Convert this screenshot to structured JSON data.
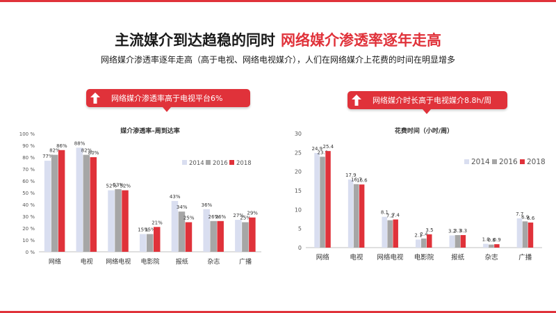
{
  "header": {
    "title_main": "主流媒介到达趋稳的同时",
    "title_highlight": "网络媒介渗透率逐年走高",
    "subtitle": "网络媒介渗透率逐年走高（高于电视、网络电视媒介），人们在网络媒介上花费的时间在明显增多"
  },
  "banners": {
    "left": "网络媒介渗透率高于电视平台6%",
    "right": "网络媒介时长高于电视媒介8.8h/周"
  },
  "colors": {
    "2014": "#d9def0",
    "2016": "#a6a6a6",
    "2018": "#e0323a",
    "accent": "#e0323a"
  },
  "chart_data": [
    {
      "type": "bar",
      "title": "媒介渗透率–周到达率",
      "categories": [
        "网络",
        "电视",
        "网络电视",
        "电影院",
        "报纸",
        "杂志",
        "广播"
      ],
      "series": [
        {
          "name": "2014",
          "values": [
            77,
            88,
            52,
            15,
            43,
            36,
            27
          ],
          "labels": [
            "77%",
            "88%",
            "52%",
            "15%",
            "43%",
            "36%",
            "27%"
          ]
        },
        {
          "name": "2016",
          "values": [
            82,
            82,
            53,
            15,
            34,
            26,
            25
          ],
          "labels": [
            "82%",
            "82%",
            "53%",
            "15%",
            "34%",
            "26%",
            "25%"
          ]
        },
        {
          "name": "2018",
          "values": [
            86,
            80,
            52,
            21,
            25,
            26,
            29
          ],
          "labels": [
            "86%",
            "80%",
            "52%",
            "21%",
            "25%",
            "26%",
            "29%"
          ]
        }
      ],
      "ylim": [
        0,
        100
      ],
      "yticks": [
        "0 %",
        "10 %",
        "20 %",
        "30 %",
        "40 %",
        "50 %",
        "60 %",
        "70 %",
        "80 %",
        "90 %",
        "100 %"
      ],
      "legend": "top-right",
      "grid": false
    },
    {
      "type": "bar",
      "title": "花费时间（小时/周）",
      "categories": [
        "网络",
        "电视",
        "网络电视",
        "电影院",
        "报纸",
        "杂志",
        "广播"
      ],
      "series": [
        {
          "name": "2014",
          "values": [
            24.9,
            17.9,
            8.1,
            2.1,
            3.2,
            1.0,
            7.7
          ],
          "labels": [
            "24.9",
            "17.9",
            "8.1",
            "2.1",
            "3.2",
            "1.0",
            "7.7"
          ]
        },
        {
          "name": "2016",
          "values": [
            23.9,
            16.7,
            7.2,
            2.4,
            3.3,
            0.8,
            6.9
          ],
          "labels": [
            "23.9",
            "16.7",
            "7.2",
            "2.4",
            "3.3",
            "0.8",
            "6.9"
          ]
        },
        {
          "name": "2018",
          "values": [
            25.4,
            16.6,
            7.4,
            3.5,
            3.3,
            0.9,
            6.6
          ],
          "labels": [
            "25.4",
            "16.6",
            "7.4",
            "3.5",
            "3.3",
            "0.9",
            "6.6"
          ]
        }
      ],
      "ylim": [
        0,
        30
      ],
      "yticks": [
        "0",
        "5",
        "10",
        "15",
        "20",
        "25",
        "30"
      ],
      "legend": "top-right",
      "grid": false
    }
  ]
}
